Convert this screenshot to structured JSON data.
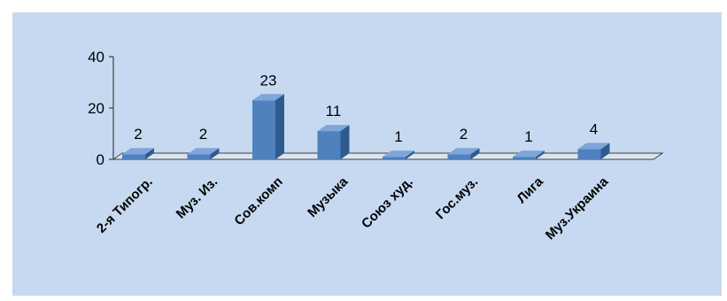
{
  "chart_data": {
    "type": "bar",
    "categories": [
      "2-я Типогр.",
      "Муз. Из.",
      "Сов.комп",
      "Музыка",
      "Союз худ.",
      "Гос.муз.",
      "Лига",
      "Муз.Украина"
    ],
    "values": [
      2,
      2,
      23,
      11,
      1,
      2,
      1,
      4
    ],
    "title": "",
    "xlabel": "",
    "ylabel": "",
    "ylim": [
      0,
      40
    ],
    "yticks": [
      0,
      20,
      40
    ],
    "grid": false,
    "legend": "none",
    "style": "3d-column",
    "colors": {
      "background": "#c6d9f1",
      "bar_front": "#4f81bd",
      "bar_top": "#7ea6d8",
      "bar_side": "#2e5a8e",
      "axis": "#404040",
      "floor": "#dbe5f1"
    }
  }
}
